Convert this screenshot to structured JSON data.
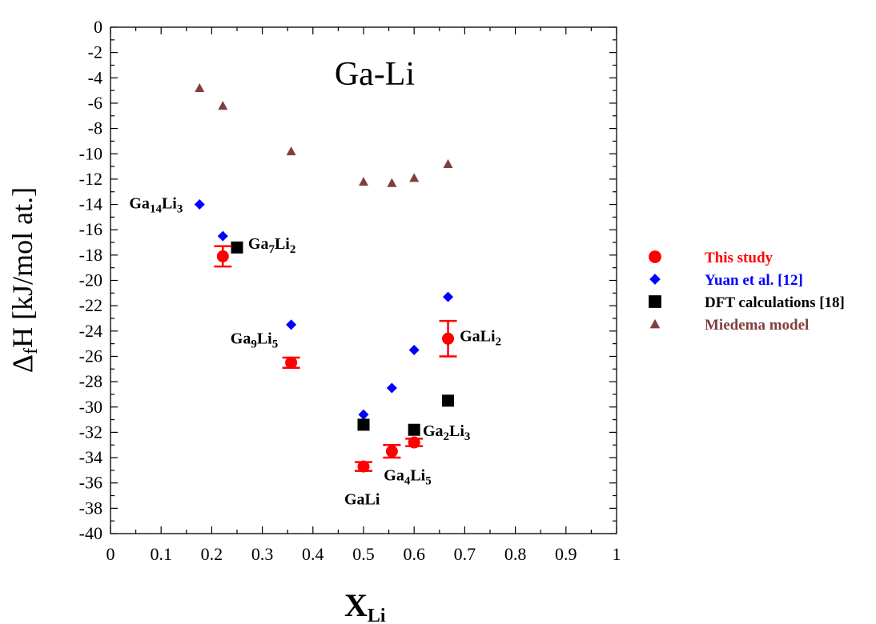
{
  "chart_data": {
    "type": "scatter",
    "title": "Ga-Li",
    "xlim": [
      0,
      1
    ],
    "ylim": [
      -40,
      0
    ],
    "x_ticks": [
      "0",
      "0.1",
      "0.2",
      "0.3",
      "0.4",
      "0.5",
      "0.6",
      "0.7",
      "0.8",
      "0.9",
      "1"
    ],
    "y_ticks": [
      "0",
      "-2",
      "-4",
      "-6",
      "-8",
      "-10",
      "-12",
      "-14",
      "-16",
      "-18",
      "-20",
      "-22",
      "-24",
      "-26",
      "-28",
      "-30",
      "-32",
      "-34",
      "-36",
      "-38",
      "-40"
    ],
    "xlabel": {
      "main": "X",
      "sub": "Li"
    },
    "ylabel": {
      "pre": "Δ",
      "sub": "f",
      "post": "H [kJ/mol at.]"
    },
    "grid": false,
    "legend_position": "right",
    "series": [
      {
        "name": "This study",
        "marker": "circle",
        "color": "#ff0000",
        "points": [
          {
            "x": 0.222,
            "y": -18.1,
            "err": 0.8
          },
          {
            "x": 0.357,
            "y": -26.5,
            "err": 0.4
          },
          {
            "x": 0.5,
            "y": -34.7,
            "err": 0.35
          },
          {
            "x": 0.556,
            "y": -33.5,
            "err": 0.5
          },
          {
            "x": 0.6,
            "y": -32.8,
            "err": 0.3
          },
          {
            "x": 0.667,
            "y": -24.6,
            "err": 1.4
          }
        ]
      },
      {
        "name": "Yuan et al. [12]",
        "marker": "diamond",
        "color": "#0000ff",
        "points": [
          {
            "x": 0.176,
            "y": -14.0
          },
          {
            "x": 0.222,
            "y": -16.5
          },
          {
            "x": 0.357,
            "y": -23.5
          },
          {
            "x": 0.5,
            "y": -30.6
          },
          {
            "x": 0.556,
            "y": -28.5
          },
          {
            "x": 0.6,
            "y": -25.5
          },
          {
            "x": 0.667,
            "y": -21.3
          }
        ]
      },
      {
        "name": "DFT calculations [18]",
        "marker": "square",
        "color": "#000000",
        "points": [
          {
            "x": 0.25,
            "y": -17.4
          },
          {
            "x": 0.5,
            "y": -31.4
          },
          {
            "x": 0.6,
            "y": -31.8
          },
          {
            "x": 0.667,
            "y": -29.5
          }
        ]
      },
      {
        "name": "Miedema model",
        "marker": "triangle",
        "color": "#7f3f3f",
        "points": [
          {
            "x": 0.176,
            "y": -4.8
          },
          {
            "x": 0.222,
            "y": -6.2
          },
          {
            "x": 0.357,
            "y": -9.8
          },
          {
            "x": 0.5,
            "y": -12.2
          },
          {
            "x": 0.556,
            "y": -12.3
          },
          {
            "x": 0.6,
            "y": -11.9
          },
          {
            "x": 0.667,
            "y": -10.8
          }
        ]
      }
    ],
    "annotations": [
      {
        "parts": [
          {
            "t": "Ga",
            "s": false
          },
          {
            "t": "14",
            "s": true
          },
          {
            "t": "Li",
            "s": false
          },
          {
            "t": "3",
            "s": true
          }
        ],
        "x": 0.037,
        "y": -14.3
      },
      {
        "parts": [
          {
            "t": "Ga",
            "s": false
          },
          {
            "t": "7",
            "s": true
          },
          {
            "t": "Li",
            "s": false
          },
          {
            "t": "2",
            "s": true
          }
        ],
        "x": 0.272,
        "y": -17.5
      },
      {
        "parts": [
          {
            "t": "Ga",
            "s": false
          },
          {
            "t": "9",
            "s": true
          },
          {
            "t": "Li",
            "s": false
          },
          {
            "t": "5",
            "s": true
          }
        ],
        "x": 0.237,
        "y": -25.0
      },
      {
        "parts": [
          {
            "t": "GaLi",
            "s": false
          },
          {
            "t": "2",
            "s": true
          }
        ],
        "x": 0.69,
        "y": -24.8
      },
      {
        "parts": [
          {
            "t": "Ga",
            "s": false
          },
          {
            "t": "2",
            "s": true
          },
          {
            "t": "Li",
            "s": false
          },
          {
            "t": "3",
            "s": true
          }
        ],
        "x": 0.617,
        "y": -32.3
      },
      {
        "parts": [
          {
            "t": "Ga",
            "s": false
          },
          {
            "t": "4",
            "s": true
          },
          {
            "t": "Li",
            "s": false
          },
          {
            "t": "5",
            "s": true
          }
        ],
        "x": 0.54,
        "y": -35.8
      },
      {
        "parts": [
          {
            "t": "GaLi",
            "s": false
          }
        ],
        "x": 0.462,
        "y": -37.7
      }
    ]
  }
}
